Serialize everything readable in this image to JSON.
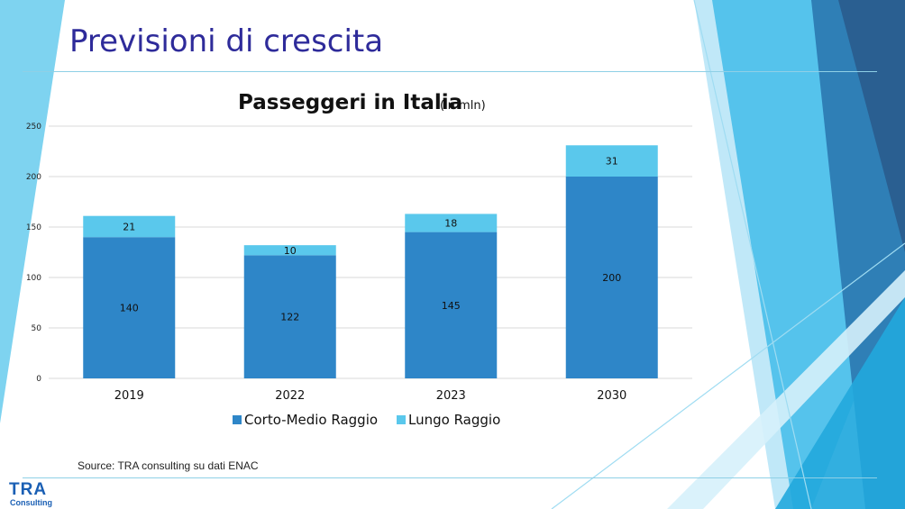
{
  "slide": {
    "title": "Previsioni di crescita",
    "source": "Source: TRA consulting su dati ENAC",
    "logo": {
      "main": "TRA",
      "sub": "Consulting"
    }
  },
  "colors": {
    "title": "#2e2b9a",
    "series_dark": "#2e86c8",
    "series_light": "#5ac8ec",
    "gridline": "#d9d9d9",
    "rule": "#8fd0e6"
  },
  "chart_data": {
    "type": "bar",
    "stacked": true,
    "title": "Passeggeri in Italia",
    "subtitle": "(in mln)",
    "categories": [
      "2019",
      "2022",
      "2023",
      "2030"
    ],
    "series": [
      {
        "name": "Corto-Medio Raggio",
        "values": [
          140,
          122,
          145,
          200
        ],
        "color": "#2e86c8"
      },
      {
        "name": "Lungo Raggio",
        "values": [
          21,
          10,
          18,
          31
        ],
        "color": "#5ac8ec"
      }
    ],
    "yticks": [
      0,
      50,
      100,
      150,
      200,
      250
    ],
    "ylim": [
      0,
      250
    ],
    "grid": true,
    "legend": "bottom"
  }
}
